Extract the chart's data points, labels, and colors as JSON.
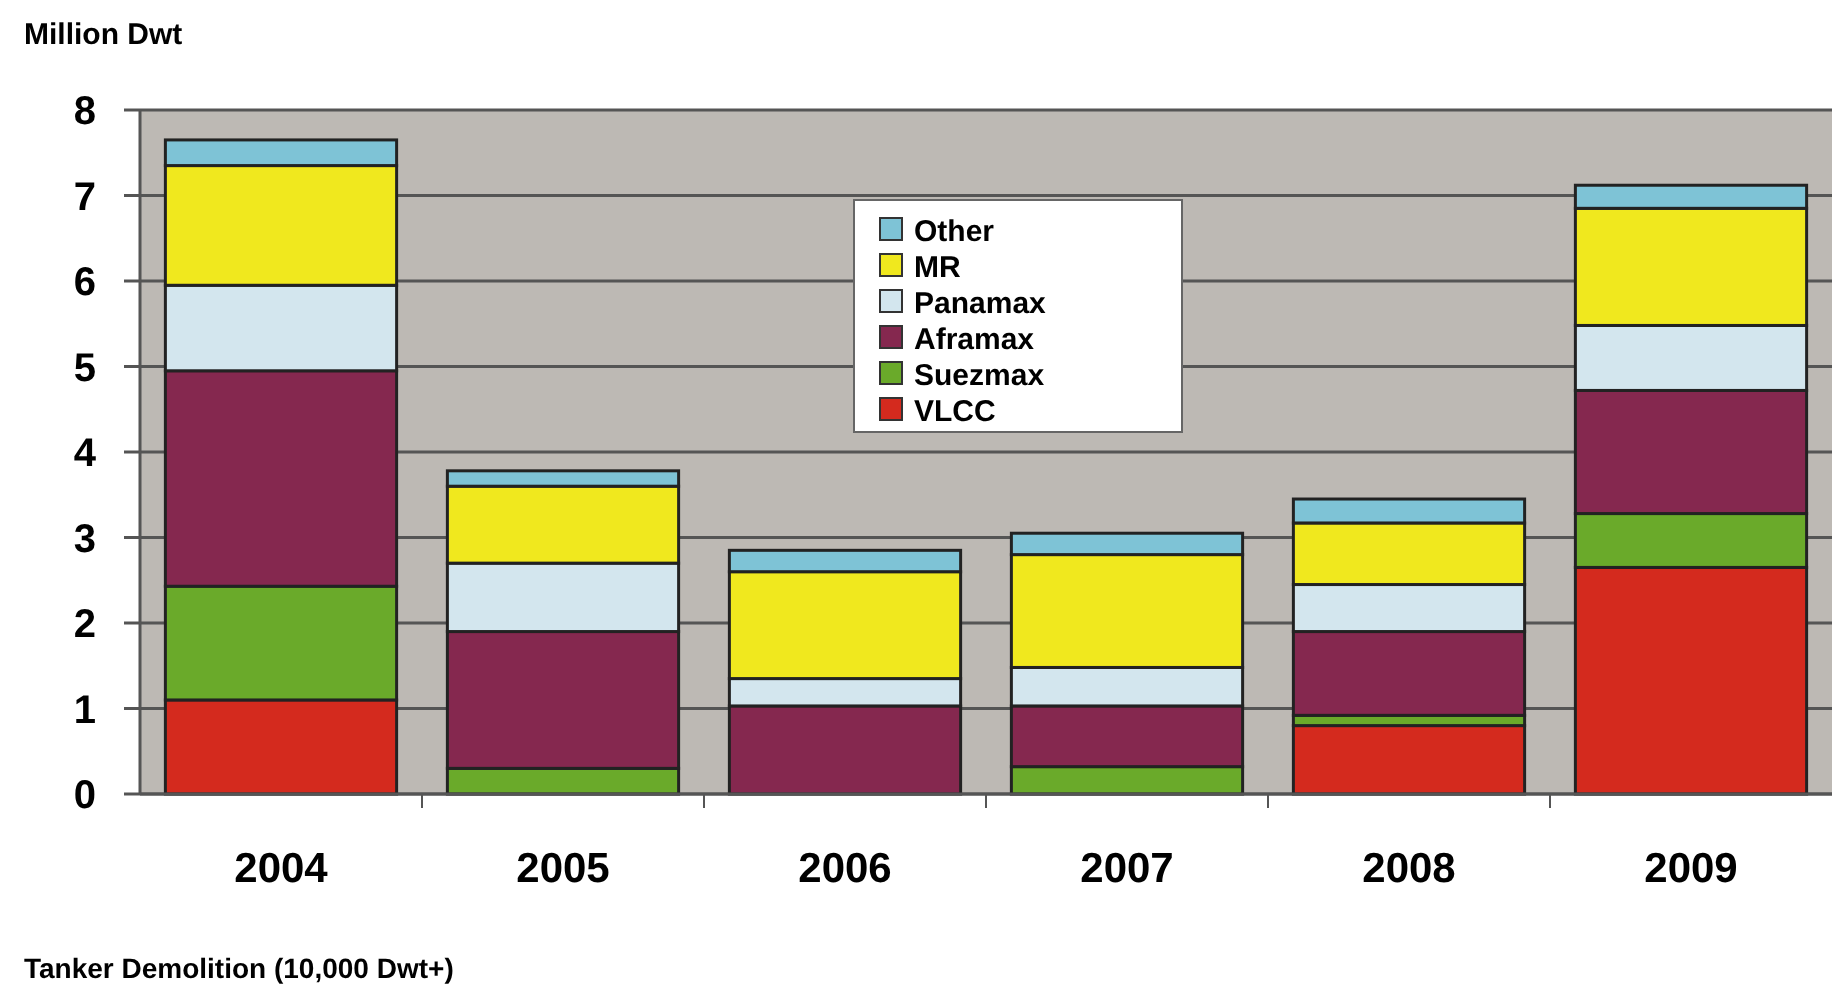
{
  "chart_data": {
    "type": "bar",
    "title": "Tanker Demolition (10,000 Dwt+)",
    "ylabel": "Million Dwt",
    "categories": [
      "2004",
      "2005",
      "2006",
      "2007",
      "2008",
      "2009"
    ],
    "stacked": true,
    "series": [
      {
        "name": "VLCC",
        "color": "#d42a1e",
        "values": [
          1.1,
          0,
          0,
          0,
          0.8,
          2.65
        ]
      },
      {
        "name": "Suezmax",
        "color": "#6aaa2a",
        "values": [
          1.33,
          0.3,
          0,
          0.32,
          0.12,
          0.63
        ]
      },
      {
        "name": "Aframax",
        "color": "#85284f",
        "values": [
          2.52,
          1.6,
          1.03,
          0.71,
          0.98,
          1.44
        ]
      },
      {
        "name": "Panamax",
        "color": "#d3e6ee",
        "values": [
          1.0,
          0.8,
          0.32,
          0.45,
          0.55,
          0.76
        ]
      },
      {
        "name": "MR",
        "color": "#f0e81e",
        "values": [
          1.4,
          0.9,
          1.25,
          1.32,
          0.72,
          1.37
        ]
      },
      {
        "name": "Other",
        "color": "#7ec3d6",
        "values": [
          0.3,
          0.18,
          0.25,
          0.25,
          0.28,
          0.27
        ]
      }
    ],
    "ylim": [
      0,
      8
    ],
    "yticks": [
      0,
      1,
      2,
      3,
      4,
      5,
      6,
      7,
      8
    ],
    "grid": "y",
    "legend": "top"
  }
}
